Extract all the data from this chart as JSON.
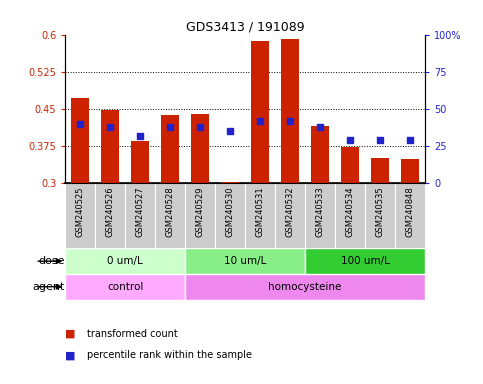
{
  "title": "GDS3413 / 191089",
  "samples": [
    "GSM240525",
    "GSM240526",
    "GSM240527",
    "GSM240528",
    "GSM240529",
    "GSM240530",
    "GSM240531",
    "GSM240532",
    "GSM240533",
    "GSM240534",
    "GSM240535",
    "GSM240848"
  ],
  "transformed_count": [
    0.473,
    0.447,
    0.385,
    0.438,
    0.44,
    0.302,
    0.588,
    0.592,
    0.415,
    0.373,
    0.352,
    0.35
  ],
  "percentile_rank": [
    40,
    38,
    32,
    38,
    38,
    35,
    42,
    42,
    38,
    29,
    29,
    29
  ],
  "bar_color": "#cc2200",
  "dot_color": "#2222cc",
  "ylim_left": [
    0.3,
    0.6
  ],
  "ylim_right": [
    0,
    100
  ],
  "yticks_left": [
    0.3,
    0.375,
    0.45,
    0.525,
    0.6
  ],
  "yticks_right": [
    0,
    25,
    50,
    75,
    100
  ],
  "ytick_labels_left": [
    "0.3",
    "0.375",
    "0.45",
    "0.525",
    "0.6"
  ],
  "ytick_labels_right": [
    "0",
    "25",
    "50",
    "75",
    "100%"
  ],
  "grid_yticks": [
    0.375,
    0.45,
    0.525
  ],
  "dose_groups": [
    {
      "label": "0 um/L",
      "start": 0,
      "end": 4,
      "color": "#ccffcc"
    },
    {
      "label": "10 um/L",
      "start": 4,
      "end": 8,
      "color": "#88ee88"
    },
    {
      "label": "100 um/L",
      "start": 8,
      "end": 12,
      "color": "#33cc33"
    }
  ],
  "agent_groups": [
    {
      "label": "control",
      "start": 0,
      "end": 4,
      "color": "#ffaaff"
    },
    {
      "label": "homocysteine",
      "start": 4,
      "end": 12,
      "color": "#ee88ee"
    }
  ],
  "legend_items": [
    {
      "label": "transformed count",
      "color": "#cc2200"
    },
    {
      "label": "percentile rank within the sample",
      "color": "#2222cc"
    }
  ],
  "dose_label": "dose",
  "agent_label": "agent",
  "bar_width": 0.6,
  "left_tick_color": "#cc2200",
  "right_tick_color": "#2222cc",
  "background_color": "#ffffff",
  "sample_bg_color": "#cccccc"
}
